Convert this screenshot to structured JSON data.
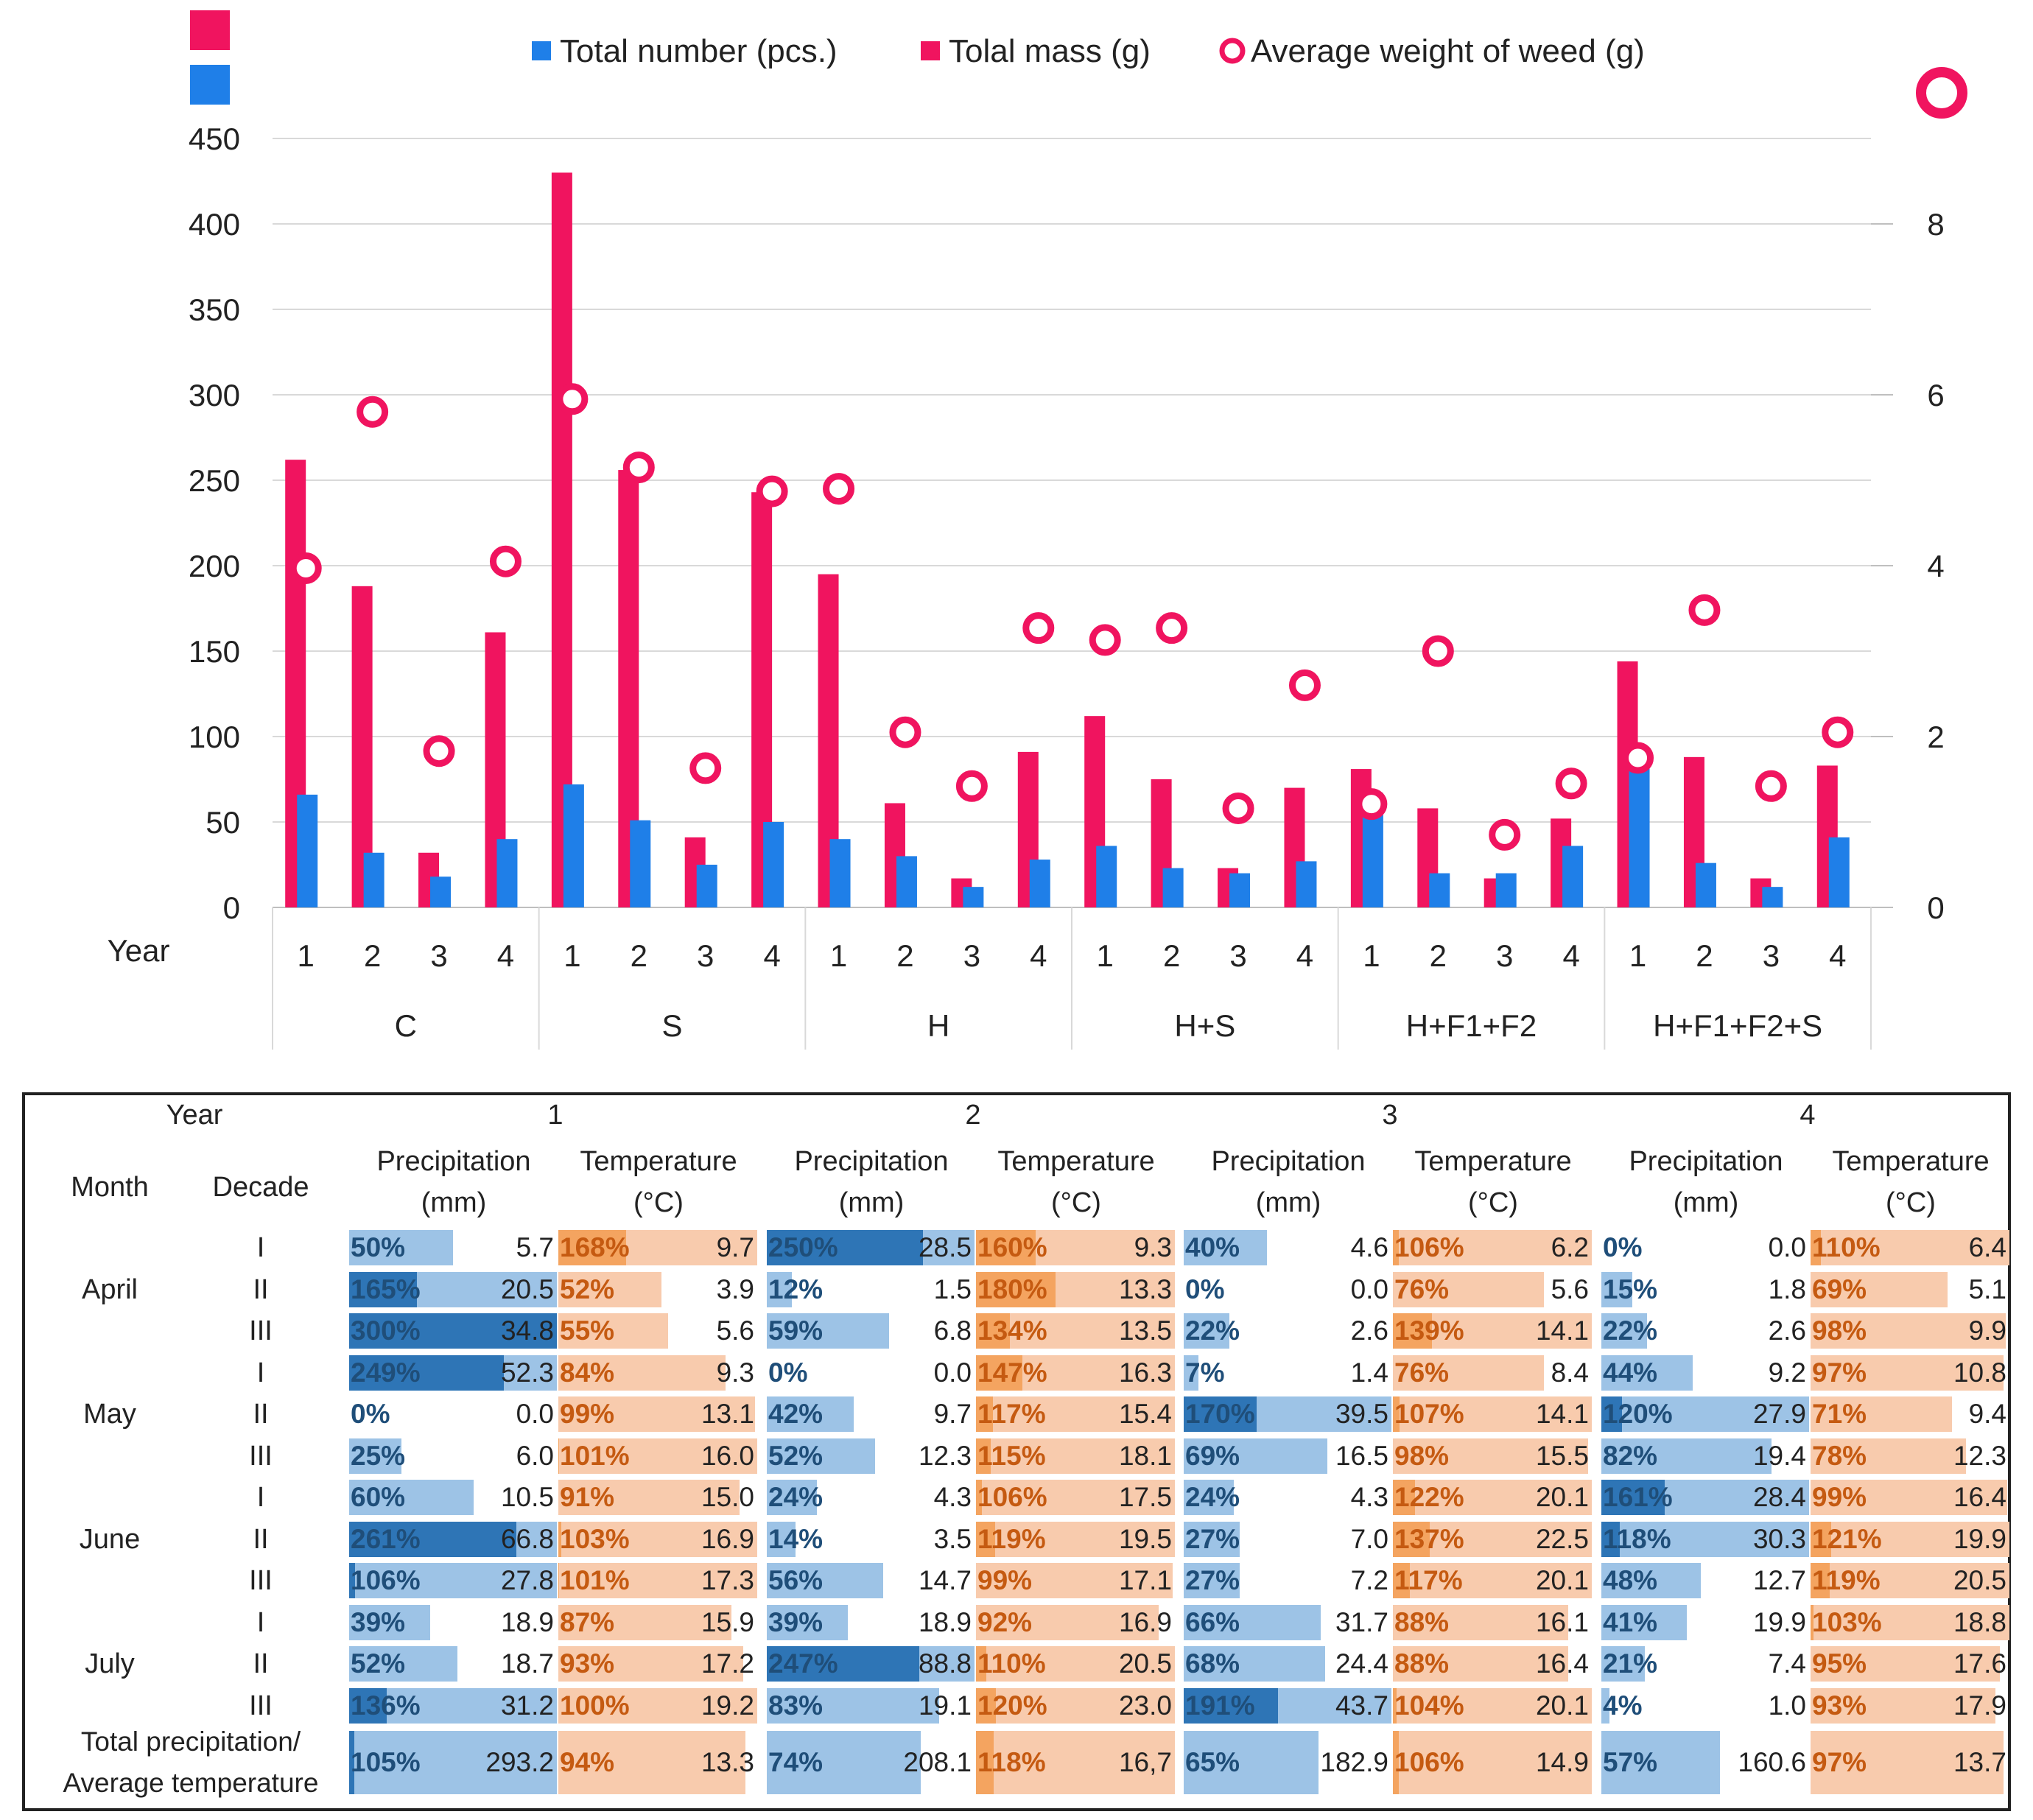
{
  "chart_data": {
    "type": "bar",
    "legend": [
      "Total number (pcs.)",
      "Tolal mass (g)",
      "Average weight of weed (g)"
    ],
    "legend_placement": "top-center",
    "x_title": "Year",
    "groups": [
      "C",
      "S",
      "H",
      "H+S",
      "H+F1+F2",
      "H+F1+F2+S"
    ],
    "years": [
      "1",
      "2",
      "3",
      "4"
    ],
    "series": [
      {
        "name": "Total number (pcs.)",
        "axis": "left",
        "kind": "bar",
        "color": "#1f7fe8",
        "values": [
          66,
          32,
          18,
          40,
          72,
          51,
          25,
          50,
          40,
          30,
          12,
          28,
          36,
          23,
          20,
          27,
          67,
          20,
          20,
          36,
          82,
          26,
          12,
          41
        ]
      },
      {
        "name": "Tolal mass (g)",
        "axis": "left",
        "kind": "bar",
        "color": "#f0145f",
        "values": [
          262,
          188,
          32,
          161,
          430,
          256,
          41,
          243,
          195,
          61,
          17,
          91,
          112,
          75,
          23,
          70,
          81,
          58,
          17,
          52,
          144,
          88,
          17,
          83
        ]
      },
      {
        "name": "Average weight of weed (g)",
        "axis": "right",
        "kind": "marker",
        "color": "#f0145f",
        "values": [
          3.97,
          5.8,
          1.83,
          4.05,
          5.95,
          5.15,
          1.63,
          4.87,
          4.9,
          2.05,
          1.42,
          3.27,
          3.13,
          3.27,
          1.16,
          2.6,
          1.21,
          3,
          0.85,
          1.45,
          1.75,
          3.48,
          1.42,
          2.05
        ]
      }
    ],
    "left_axis": {
      "min": 0,
      "max": 450,
      "ticks": [
        "0",
        "50",
        "100",
        "150",
        "200",
        "250",
        "300",
        "350",
        "400",
        "450"
      ]
    },
    "right_axis": {
      "min": 0,
      "max": 9,
      "ticks": [
        "0",
        "2",
        "4",
        "6",
        "8"
      ]
    }
  },
  "table": {
    "year_label": "Year",
    "month_label": "Month",
    "decade_label": "Decade",
    "years": [
      "1",
      "2",
      "3",
      "4"
    ],
    "precip_label": [
      "Precipitation",
      "(mm)"
    ],
    "temp_label": [
      "Temperature",
      "(°C)"
    ],
    "total_label": [
      "Total precipitation/",
      "Average temperature"
    ],
    "months": [
      "April",
      "May",
      "June",
      "July"
    ],
    "decades": [
      "I",
      "II",
      "III",
      "I",
      "II",
      "III",
      "I",
      "II",
      "III",
      "I",
      "II",
      "III"
    ],
    "rows": [
      {
        "y": [
          [
            "50%",
            "5.7",
            "168%",
            "9.7"
          ],
          [
            "250%",
            "28.5",
            "160%",
            "9.3"
          ],
          [
            "40%",
            "4.6",
            "106%",
            "6.2"
          ],
          [
            "0%",
            "0.0",
            "110%",
            "6.4"
          ]
        ]
      },
      {
        "y": [
          [
            "165%",
            "20.5",
            "52%",
            "3.9"
          ],
          [
            "12%",
            "1.5",
            "180%",
            "13.3"
          ],
          [
            "0%",
            "0.0",
            "76%",
            "5.6"
          ],
          [
            "15%",
            "1.8",
            "69%",
            "5.1"
          ]
        ]
      },
      {
        "y": [
          [
            "300%",
            "34.8",
            "55%",
            "5.6"
          ],
          [
            "59%",
            "6.8",
            "134%",
            "13.5"
          ],
          [
            "22%",
            "2.6",
            "139%",
            "14.1"
          ],
          [
            "22%",
            "2.6",
            "98%",
            "9.9"
          ]
        ]
      },
      {
        "y": [
          [
            "249%",
            "52.3",
            "84%",
            "9.3"
          ],
          [
            "0%",
            "0.0",
            "147%",
            "16.3"
          ],
          [
            "7%",
            "1.4",
            "76%",
            "8.4"
          ],
          [
            "44%",
            "9.2",
            "97%",
            "10.8"
          ]
        ]
      },
      {
        "y": [
          [
            "0%",
            "0.0",
            "99%",
            "13.1"
          ],
          [
            "42%",
            "9.7",
            "117%",
            "15.4"
          ],
          [
            "170%",
            "39.5",
            "107%",
            "14.1"
          ],
          [
            "120%",
            "27.9",
            "71%",
            "9.4"
          ]
        ]
      },
      {
        "y": [
          [
            "25%",
            "6.0",
            "101%",
            "16.0"
          ],
          [
            "52%",
            "12.3",
            "115%",
            "18.1"
          ],
          [
            "69%",
            "16.5",
            "98%",
            "15.5"
          ],
          [
            "82%",
            "19.4",
            "78%",
            "12.3"
          ]
        ]
      },
      {
        "y": [
          [
            "60%",
            "10.5",
            "91%",
            "15.0"
          ],
          [
            "24%",
            "4.3",
            "106%",
            "17.5"
          ],
          [
            "24%",
            "4.3",
            "122%",
            "20.1"
          ],
          [
            "161%",
            "28.4",
            "99%",
            "16.4"
          ]
        ]
      },
      {
        "y": [
          [
            "261%",
            "66.8",
            "103%",
            "16.9"
          ],
          [
            "14%",
            "3.5",
            "119%",
            "19.5"
          ],
          [
            "27%",
            "7.0",
            "137%",
            "22.5"
          ],
          [
            "118%",
            "30.3",
            "121%",
            "19.9"
          ]
        ]
      },
      {
        "y": [
          [
            "106%",
            "27.8",
            "101%",
            "17.3"
          ],
          [
            "56%",
            "14.7",
            "99%",
            "17.1"
          ],
          [
            "27%",
            "7.2",
            "117%",
            "20.1"
          ],
          [
            "48%",
            "12.7",
            "119%",
            "20.5"
          ]
        ]
      },
      {
        "y": [
          [
            "39%",
            "18.9",
            "87%",
            "15.9"
          ],
          [
            "39%",
            "18.9",
            "92%",
            "16.9"
          ],
          [
            "66%",
            "31.7",
            "88%",
            "16.1"
          ],
          [
            "41%",
            "19.9",
            "103%",
            "18.8"
          ]
        ]
      },
      {
        "y": [
          [
            "52%",
            "18.7",
            "93%",
            "17.2"
          ],
          [
            "247%",
            "88.8",
            "110%",
            "20.5"
          ],
          [
            "68%",
            "24.4",
            "88%",
            "16.4"
          ],
          [
            "21%",
            "7.4",
            "95%",
            "17.6"
          ]
        ]
      },
      {
        "y": [
          [
            "136%",
            "31.2",
            "100%",
            "19.2"
          ],
          [
            "83%",
            "19.1",
            "120%",
            "23.0"
          ],
          [
            "191%",
            "43.7",
            "104%",
            "20.1"
          ],
          [
            "4%",
            "1.0",
            "93%",
            "17.9"
          ]
        ]
      }
    ],
    "totals": [
      [
        "105%",
        "293.2",
        "94%",
        "13.3"
      ],
      [
        "74%",
        "208.1",
        "118%",
        "16,7"
      ],
      [
        "65%",
        "182.9",
        "106%",
        "14.9"
      ],
      [
        "57%",
        "160.6",
        "97%",
        "13.7"
      ]
    ]
  }
}
